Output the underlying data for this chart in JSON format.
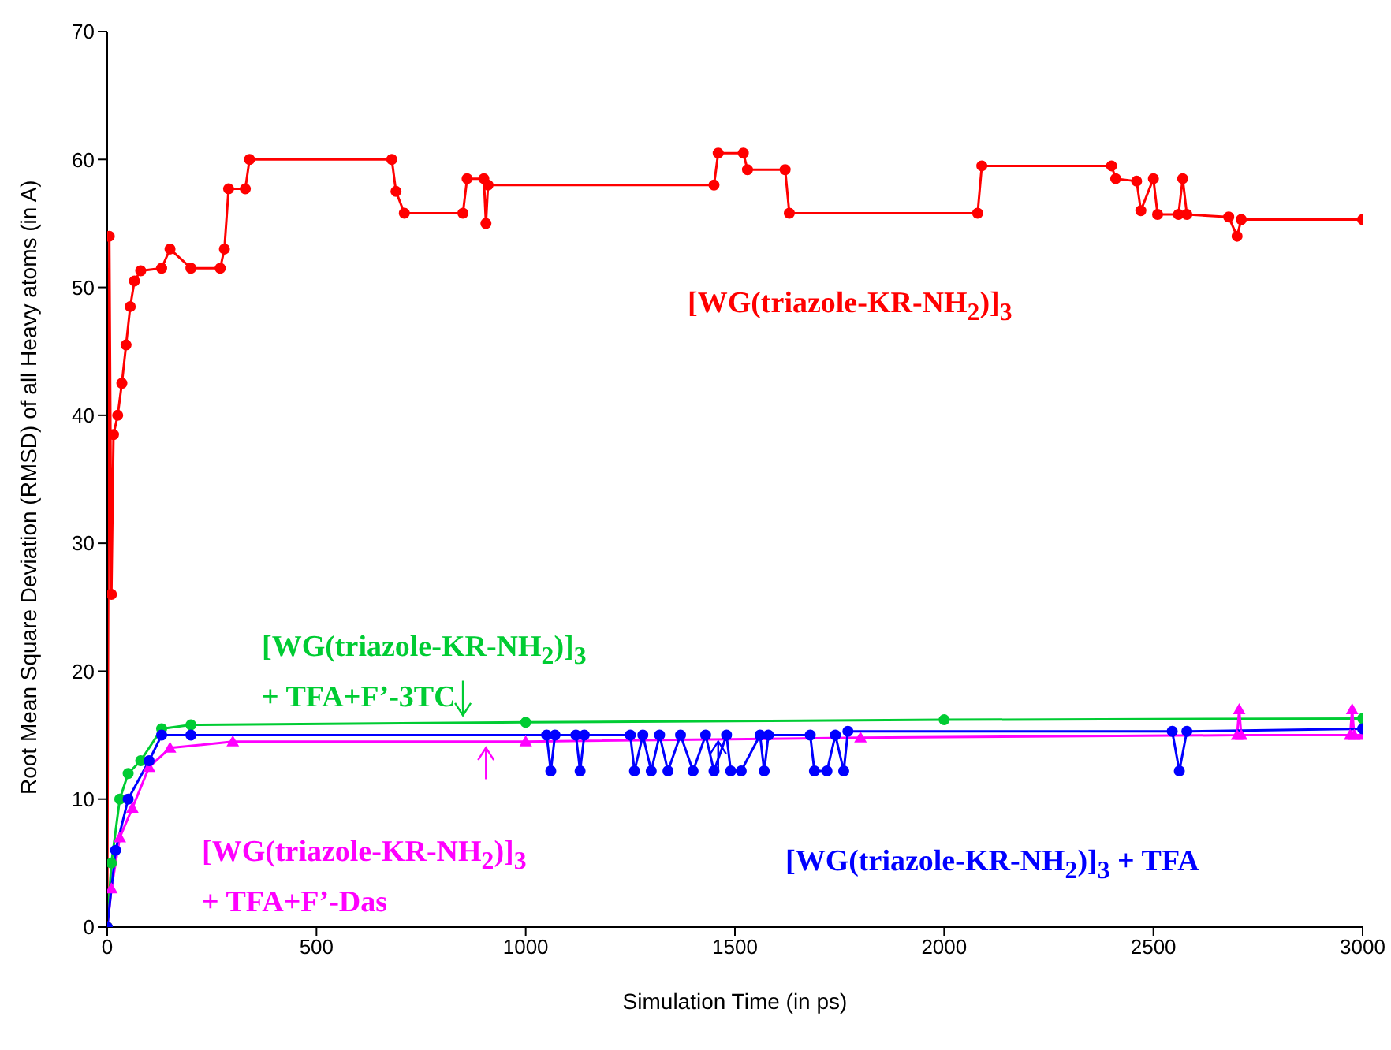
{
  "chart_data": {
    "type": "line",
    "xlabel": "Simulation Time (in ps)",
    "ylabel": "Root Mean Square Deviation (RMSD) of all Heavy atoms (in A)",
    "xlim": [
      0,
      3000
    ],
    "ylim": [
      0,
      70
    ],
    "xticks": [
      0,
      500,
      1000,
      1500,
      2000,
      2500,
      3000
    ],
    "yticks": [
      0,
      10,
      20,
      30,
      40,
      50,
      60,
      70
    ],
    "series": [
      {
        "color": "#ff0000",
        "marker": "circle",
        "x": [
          0,
          5,
          10,
          15,
          25,
          35,
          45,
          55,
          65,
          80,
          130,
          150,
          200,
          270,
          280,
          290,
          330,
          340,
          680,
          690,
          710,
          850,
          860,
          900,
          905,
          910,
          1450,
          1460,
          1520,
          1530,
          1620,
          1630,
          2080,
          2090,
          2400,
          2410,
          2460,
          2470,
          2500,
          2510,
          2560,
          2570,
          2580,
          2680,
          2700,
          2710,
          3000
        ],
        "values": [
          0,
          54,
          26,
          38.5,
          40,
          42.5,
          45.5,
          48.5,
          50.5,
          51.3,
          51.5,
          53,
          51.5,
          51.5,
          53,
          57.7,
          57.7,
          60,
          60,
          57.5,
          55.8,
          55.8,
          58.5,
          58.5,
          55,
          58,
          58,
          60.5,
          60.5,
          59.2,
          59.2,
          55.8,
          55.8,
          59.5,
          59.5,
          58.5,
          58.3,
          56,
          58.5,
          55.7,
          55.7,
          58.5,
          55.7,
          55.5,
          54,
          55.3,
          55.3
        ]
      },
      {
        "color": "#00cc33",
        "marker": "circle",
        "x": [
          0,
          10,
          30,
          50,
          80,
          130,
          200,
          1000,
          2000,
          3000
        ],
        "values": [
          0,
          5,
          10,
          12,
          13,
          15.5,
          15.8,
          16,
          16.2,
          16.3
        ]
      },
      {
        "color": "#ff00ff",
        "marker": "triangle",
        "x": [
          0,
          10,
          30,
          60,
          100,
          150,
          300,
          1000,
          1800,
          2700,
          2705,
          2710,
          2970,
          2975,
          2980,
          3000
        ],
        "values": [
          0,
          3,
          7,
          9.3,
          12.5,
          14,
          14.5,
          14.5,
          14.8,
          15,
          17,
          15,
          15,
          17,
          15,
          15
        ]
      },
      {
        "color": "#0000ff",
        "marker": "circle",
        "x": [
          0,
          20,
          50,
          100,
          130,
          200,
          1050,
          1060,
          1070,
          1120,
          1130,
          1140,
          1250,
          1260,
          1280,
          1300,
          1320,
          1340,
          1370,
          1400,
          1430,
          1450,
          1480,
          1490,
          1515,
          1560,
          1570,
          1580,
          1680,
          1690,
          1720,
          1740,
          1760,
          1770,
          2545,
          2562,
          2580,
          3000
        ],
        "values": [
          0,
          6,
          10,
          13,
          15,
          15,
          15,
          12.2,
          15,
          15,
          12.2,
          15,
          15,
          12.2,
          15,
          12.2,
          15,
          12.2,
          15,
          12.2,
          15,
          12.2,
          15,
          12.2,
          12.2,
          15,
          12.2,
          15,
          15,
          12.2,
          12.2,
          15,
          12.2,
          15.3,
          15.3,
          12.2,
          15.3,
          15.5
        ]
      }
    ],
    "annotations": [
      "[WG(triazole-KR-NH$_{2}$)]$_{3}$",
      "[WG(triazole-KR-NH$_{2}$)]$_{3}$\n+ TFA+F’-3TC",
      "[WG(triazole-KR-NH$_{2}$)]$_{3}$\n+ TFA+F’-Das",
      "[WG(triazole-KR-NH$_{2}$)]$_{3}$ + TFA"
    ]
  }
}
